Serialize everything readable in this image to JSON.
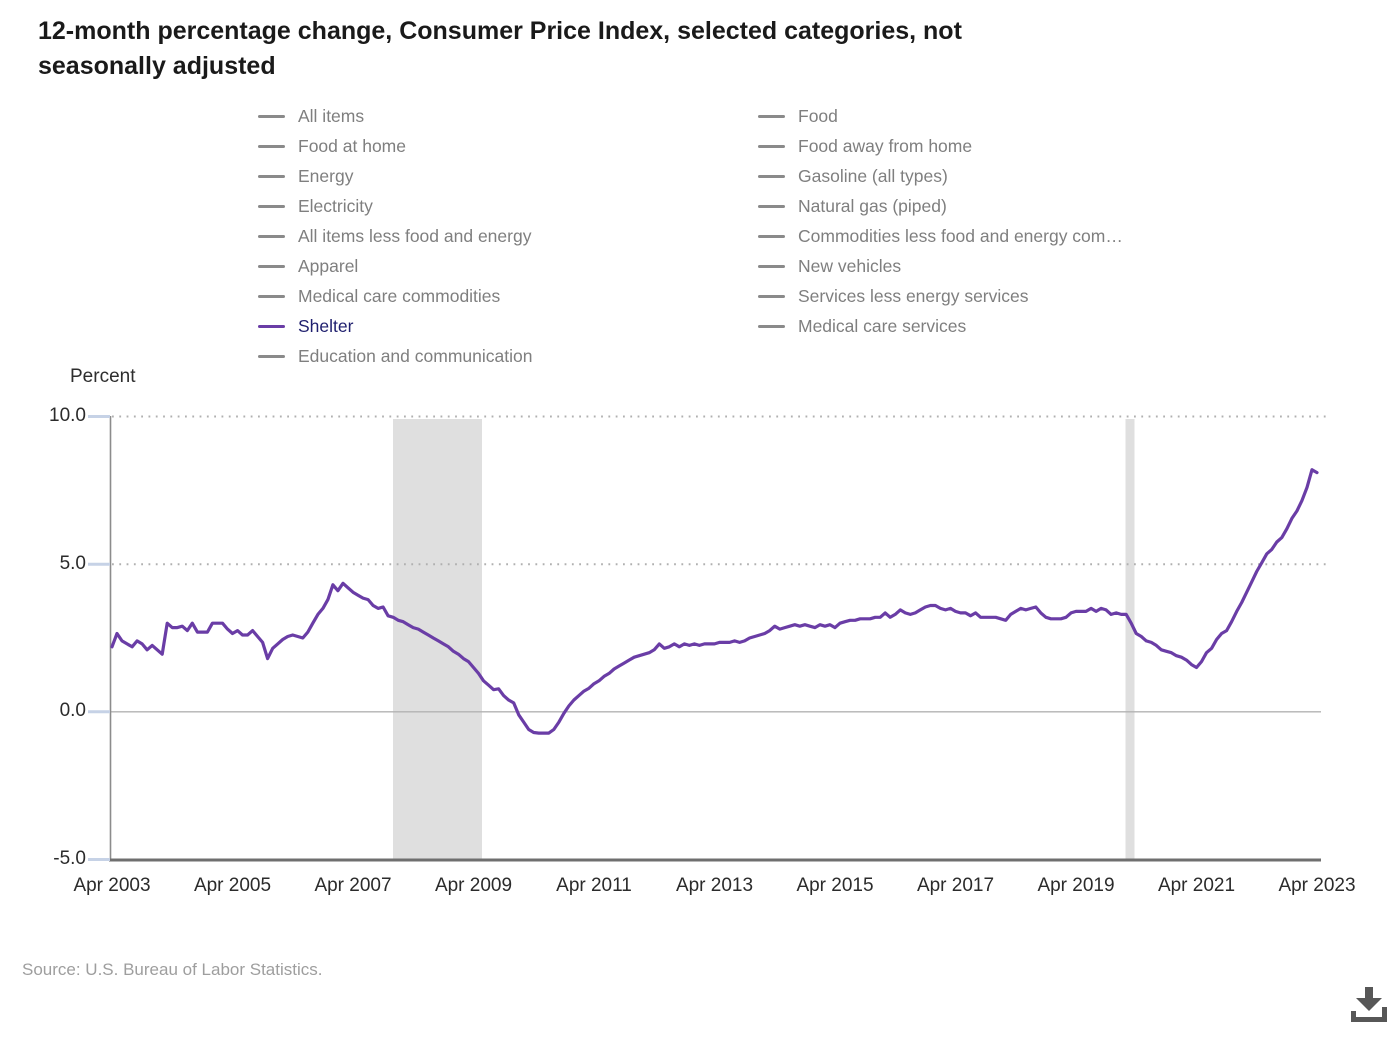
{
  "title": {
    "full": "12-month percentage change, Consumer Price Index, selected categories, not seasonally adjusted",
    "line1": "12-month percentage change, Consumer Price Index, selected categories, not",
    "line2": "seasonally adjusted"
  },
  "legend": {
    "column1": [
      {
        "label": "All items",
        "active": false
      },
      {
        "label": "Food at home",
        "active": false
      },
      {
        "label": "Energy",
        "active": false
      },
      {
        "label": "Electricity",
        "active": false
      },
      {
        "label": "All items less food and energy",
        "active": false
      },
      {
        "label": "Apparel",
        "active": false
      },
      {
        "label": "Medical care commodities",
        "active": false
      },
      {
        "label": "Shelter",
        "active": true
      },
      {
        "label": "Education and communication",
        "active": false
      }
    ],
    "column2": [
      {
        "label": "Food",
        "active": false
      },
      {
        "label": "Food away from home",
        "active": false
      },
      {
        "label": "Gasoline (all types)",
        "active": false
      },
      {
        "label": "Natural gas (piped)",
        "active": false
      },
      {
        "label": "Commodities less food and energy com…",
        "active": false
      },
      {
        "label": "New vehicles",
        "active": false
      },
      {
        "label": "Services less energy services",
        "active": false
      },
      {
        "label": "Medical care services",
        "active": false
      }
    ]
  },
  "axis": {
    "y_title": "Percent",
    "y_ticks": [
      "10.0",
      "5.0",
      "0.0",
      "-5.0"
    ],
    "x_ticks": [
      "Apr 2003",
      "Apr 2005",
      "Apr 2007",
      "Apr 2009",
      "Apr 2011",
      "Apr 2013",
      "Apr 2015",
      "Apr 2017",
      "Apr 2019",
      "Apr 2021",
      "Apr 2023"
    ]
  },
  "source": "Source: U.S. Bureau of Labor Statistics.",
  "colors": {
    "line": "#6a3da6",
    "active_label": "#1f1f6e",
    "inactive_label": "#7f7f7f",
    "inactive_swatch": "#8a8a8a",
    "recession_band": "#dfdfdf",
    "gridline": "#b0b0b0",
    "axis_line": "#8c8c8c",
    "tick_mark": "#c6d2e6",
    "icon": "#575757"
  },
  "chart_data": {
    "type": "line",
    "title": "12-month percentage change, Consumer Price Index, selected categories, not seasonally adjusted",
    "ylabel": "Percent",
    "ylim": [
      -5.0,
      10.0
    ],
    "y_gridlines_dotted": [
      5.0,
      10.0
    ],
    "y_gridlines_solid": [
      0.0
    ],
    "x_tick_labels": [
      "Apr 2003",
      "Apr 2005",
      "Apr 2007",
      "Apr 2009",
      "Apr 2011",
      "Apr 2013",
      "Apr 2015",
      "Apr 2017",
      "Apr 2019",
      "Apr 2021",
      "Apr 2023"
    ],
    "frequency": "monthly",
    "x_start": "Apr 2003",
    "x_end": "Apr 2023",
    "recession_bands": [
      {
        "from": "Dec 2007",
        "to": "Jun 2009"
      },
      {
        "from": "Feb 2020",
        "to": "Apr 2020"
      }
    ],
    "series": [
      {
        "name": "Shelter",
        "color": "#6a3da6",
        "values": [
          2.2,
          2.65,
          2.4,
          2.3,
          2.2,
          2.4,
          2.3,
          2.1,
          2.25,
          2.1,
          1.95,
          3.0,
          2.85,
          2.85,
          2.9,
          2.75,
          3.0,
          2.7,
          2.7,
          2.7,
          3.0,
          3.0,
          3.0,
          2.8,
          2.65,
          2.75,
          2.6,
          2.6,
          2.75,
          2.55,
          2.35,
          1.8,
          2.15,
          2.3,
          2.45,
          2.55,
          2.6,
          2.55,
          2.5,
          2.7,
          3.0,
          3.3,
          3.5,
          3.8,
          4.3,
          4.1,
          4.35,
          4.2,
          4.05,
          3.95,
          3.85,
          3.8,
          3.6,
          3.5,
          3.55,
          3.25,
          3.2,
          3.1,
          3.05,
          2.95,
          2.85,
          2.8,
          2.7,
          2.6,
          2.5,
          2.4,
          2.3,
          2.2,
          2.05,
          1.95,
          1.8,
          1.7,
          1.5,
          1.3,
          1.05,
          0.9,
          0.75,
          0.78,
          0.55,
          0.4,
          0.3,
          -0.1,
          -0.35,
          -0.6,
          -0.7,
          -0.72,
          -0.72,
          -0.72,
          -0.6,
          -0.35,
          -0.05,
          0.2,
          0.4,
          0.55,
          0.7,
          0.8,
          0.95,
          1.05,
          1.2,
          1.3,
          1.45,
          1.55,
          1.65,
          1.75,
          1.85,
          1.9,
          1.95,
          2.0,
          2.1,
          2.3,
          2.15,
          2.2,
          2.3,
          2.2,
          2.3,
          2.25,
          2.3,
          2.25,
          2.3,
          2.3,
          2.3,
          2.35,
          2.35,
          2.35,
          2.4,
          2.35,
          2.4,
          2.5,
          2.55,
          2.6,
          2.65,
          2.75,
          2.9,
          2.8,
          2.85,
          2.9,
          2.95,
          2.9,
          2.95,
          2.9,
          2.85,
          2.95,
          2.9,
          2.95,
          2.85,
          3.0,
          3.05,
          3.1,
          3.1,
          3.15,
          3.15,
          3.15,
          3.2,
          3.2,
          3.35,
          3.2,
          3.3,
          3.45,
          3.35,
          3.3,
          3.35,
          3.45,
          3.55,
          3.6,
          3.6,
          3.5,
          3.45,
          3.5,
          3.4,
          3.35,
          3.35,
          3.25,
          3.35,
          3.2,
          3.2,
          3.2,
          3.2,
          3.15,
          3.1,
          3.3,
          3.4,
          3.5,
          3.45,
          3.5,
          3.55,
          3.35,
          3.2,
          3.15,
          3.15,
          3.15,
          3.2,
          3.35,
          3.4,
          3.4,
          3.4,
          3.5,
          3.4,
          3.5,
          3.45,
          3.3,
          3.35,
          3.3,
          3.3,
          3.0,
          2.65,
          2.55,
          2.4,
          2.35,
          2.25,
          2.1,
          2.05,
          2.0,
          1.9,
          1.85,
          1.75,
          1.6,
          1.5,
          1.7,
          2.0,
          2.15,
          2.45,
          2.65,
          2.75,
          3.05,
          3.4,
          3.7,
          4.05,
          4.4,
          4.75,
          5.05,
          5.35,
          5.5,
          5.75,
          5.9,
          6.2,
          6.55,
          6.8,
          7.15,
          7.6,
          8.2,
          8.1
        ]
      }
    ]
  },
  "download": {
    "tooltip": "Download"
  }
}
